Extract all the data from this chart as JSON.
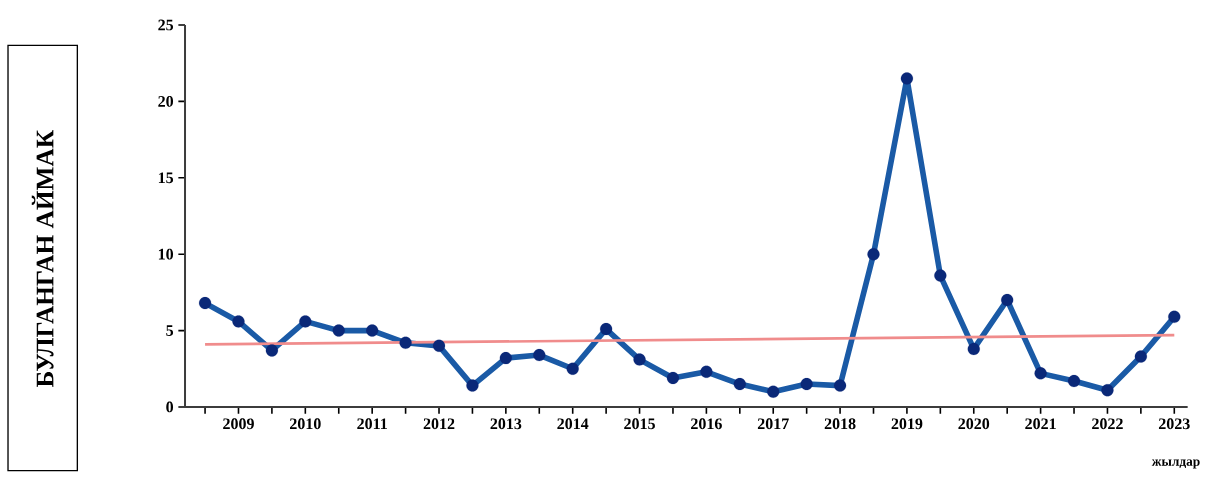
{
  "chart_data": {
    "type": "line",
    "ylabel": "БУЛГАНГАН   АЙМАК",
    "xlabel": "жылдар",
    "xlim": [
      2008.2,
      2023.2
    ],
    "ylim": [
      0,
      25
    ],
    "yticks": [
      0,
      5,
      10,
      15,
      20,
      25
    ],
    "xticks": [
      {
        "value": 2008.5,
        "label": null
      },
      {
        "value": 2009,
        "label": "2009"
      },
      {
        "value": 2009.5,
        "label": null
      },
      {
        "value": 2010,
        "label": "2010"
      },
      {
        "value": 2010.5,
        "label": null
      },
      {
        "value": 2011,
        "label": "2011"
      },
      {
        "value": 2011.5,
        "label": null
      },
      {
        "value": 2012,
        "label": "2012"
      },
      {
        "value": 2012.5,
        "label": null
      },
      {
        "value": 2013,
        "label": "2013"
      },
      {
        "value": 2013.5,
        "label": null
      },
      {
        "value": 2014,
        "label": "2014"
      },
      {
        "value": 2014.5,
        "label": null
      },
      {
        "value": 2015,
        "label": "2015"
      },
      {
        "value": 2015.5,
        "label": null
      },
      {
        "value": 2016,
        "label": "2016"
      },
      {
        "value": 2016.5,
        "label": null
      },
      {
        "value": 2017,
        "label": "2017"
      },
      {
        "value": 2017.5,
        "label": null
      },
      {
        "value": 2018,
        "label": "2018"
      },
      {
        "value": 2018.5,
        "label": null
      },
      {
        "value": 2019,
        "label": "2019"
      },
      {
        "value": 2019.5,
        "label": null
      },
      {
        "value": 2020,
        "label": "2020"
      },
      {
        "value": 2020.5,
        "label": null
      },
      {
        "value": 2021,
        "label": "2021"
      },
      {
        "value": 2021.5,
        "label": null
      },
      {
        "value": 2022,
        "label": "2022"
      },
      {
        "value": 2022.5,
        "label": null
      },
      {
        "value": 2023,
        "label": "2023"
      }
    ],
    "grid": false,
    "series": [
      {
        "color": "#1a5aa6",
        "marker": "circle",
        "x": [
          2008.5,
          2009,
          2009.5,
          2010,
          2010.5,
          2011,
          2011.5,
          2012,
          2012.5,
          2013,
          2013.5,
          2014,
          2014.5,
          2015,
          2015.5,
          2016,
          2016.5,
          2017,
          2017.5,
          2018,
          2018.5,
          2019,
          2019.5,
          2020,
          2020.5,
          2021,
          2021.5,
          2022,
          2022.5,
          2023
        ],
        "values": [
          6.8,
          5.6,
          3.7,
          5.6,
          5.0,
          5.0,
          4.2,
          4.0,
          1.4,
          3.2,
          3.4,
          2.5,
          5.1,
          3.1,
          1.9,
          2.3,
          1.5,
          1.0,
          1.5,
          1.4,
          10.0,
          21.5,
          8.6,
          3.8,
          7.0,
          2.2,
          1.7,
          1.1,
          3.3,
          5.9
        ]
      },
      {
        "type": "line",
        "color": "#f08c8c",
        "marker": "none",
        "x": [
          2008.5,
          2023
        ],
        "values": [
          4.1,
          4.7
        ]
      }
    ]
  }
}
